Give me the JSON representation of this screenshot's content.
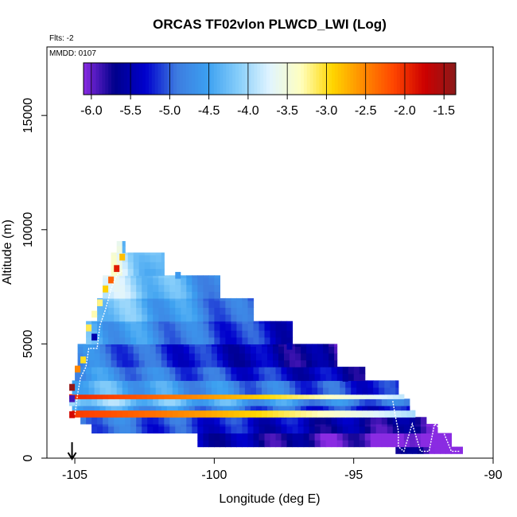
{
  "chart_data": {
    "type": "heatmap",
    "title": "ORCAS TF02vlon PLWCD_LWI (Log)",
    "flights_label": "Flts: -2",
    "date_label": "MMDD: 0107",
    "xlabel": "Longitude (deg E)",
    "ylabel": "Altitude (m)",
    "xlim": [
      -106,
      -90
    ],
    "ylim": [
      0,
      18000
    ],
    "xticks": [
      -105,
      -100,
      -95,
      -90
    ],
    "yticks": [
      0,
      5000,
      10000,
      15000
    ],
    "colorbar": {
      "range": [
        -6.1,
        -1.35
      ],
      "ticks": [
        -6.0,
        -5.5,
        -5.0,
        -4.5,
        -4.0,
        -3.5,
        -3.0,
        -2.5,
        -2.0,
        -1.5
      ],
      "tick_labels": [
        "-6.0",
        "-5.5",
        "-5.0",
        "-4.5",
        "-4.0",
        "-3.5",
        "-3.0",
        "-2.5",
        "-2.0",
        "-1.5"
      ],
      "colors": [
        "#8a2be2",
        "#00008b",
        "#0000cd",
        "#3d7be0",
        "#3ca0f0",
        "#87cefa",
        "#e0f4ff",
        "#ffffc0",
        "#ffd700",
        "#ff8c00",
        "#ff4500",
        "#cc0000",
        "#8b1a1a"
      ]
    },
    "marker_arrow_longitude": -105.1,
    "cell_size": {
      "dlon": 0.2,
      "dalt": 300
    },
    "bands": [
      {
        "alt": [
          200,
          500
        ],
        "lon": [
          -93.5,
          -91.1
        ],
        "value": -5.6
      },
      {
        "alt": [
          500,
          1100
        ],
        "lon": [
          -100.6,
          -91.5
        ],
        "value": -5.4
      },
      {
        "alt": [
          1100,
          1500
        ],
        "lon": [
          -104.4,
          -92.0
        ],
        "value": -4.9
      },
      {
        "alt": [
          1500,
          1800
        ],
        "lon": [
          -104.8,
          -92.4
        ],
        "value": -4.8
      },
      {
        "alt": [
          1800,
          2100
        ],
        "lon": [
          -105.1,
          -92.8
        ],
        "value": -2.1
      },
      {
        "alt": [
          2100,
          2300
        ],
        "lon": [
          -105.1,
          -93.0
        ],
        "value": -4.4
      },
      {
        "alt": [
          2300,
          2600
        ],
        "lon": [
          -105.2,
          -93.0
        ],
        "value": -4.0
      },
      {
        "alt": [
          2600,
          2800
        ],
        "lon": [
          -105.2,
          -93.2
        ],
        "value": -2.0
      },
      {
        "alt": [
          2800,
          3400
        ],
        "lon": [
          -105.1,
          -93.4
        ],
        "value": -4.3
      },
      {
        "alt": [
          3400,
          4000
        ],
        "lon": [
          -105.0,
          -94.6
        ],
        "value": -4.6
      },
      {
        "alt": [
          4000,
          5000
        ],
        "lon": [
          -104.9,
          -95.6
        ],
        "value": -4.8
      },
      {
        "alt": [
          5000,
          6000
        ],
        "lon": [
          -104.6,
          -97.2
        ],
        "value": -4.4
      },
      {
        "alt": [
          6000,
          7000
        ],
        "lon": [
          -104.2,
          -98.6
        ],
        "value": -4.1
      },
      {
        "alt": [
          7000,
          8000
        ],
        "lon": [
          -104.0,
          -99.8
        ],
        "value": -3.8
      },
      {
        "alt": [
          8000,
          9000
        ],
        "lon": [
          -103.7,
          -101.8
        ],
        "value": -3.6
      },
      {
        "alt": [
          9000,
          9500
        ],
        "lon": [
          -103.5,
          -103.2
        ],
        "value": -3.5
      }
    ],
    "highlights": [
      {
        "lon": -105.1,
        "alt": 1900,
        "value": -1.8
      },
      {
        "lon": -105.1,
        "alt": 2600,
        "value": -5.9
      },
      {
        "lon": -105.1,
        "alt": 3100,
        "value": -1.4
      },
      {
        "lon": -104.9,
        "alt": 3900,
        "value": -2.5
      },
      {
        "lon": -104.7,
        "alt": 4300,
        "value": -3.0
      },
      {
        "lon": -104.5,
        "alt": 5700,
        "value": -3.1
      },
      {
        "lon": -104.3,
        "alt": 6300,
        "value": -3.3
      },
      {
        "lon": -104.1,
        "alt": 6800,
        "value": -3.2
      },
      {
        "lon": -103.9,
        "alt": 7400,
        "value": -2.9
      },
      {
        "lon": -103.7,
        "alt": 7800,
        "value": -2.3
      },
      {
        "lon": -103.5,
        "alt": 8300,
        "value": -1.9
      },
      {
        "lon": -103.3,
        "alt": 8800,
        "value": -2.8
      },
      {
        "lon": -104.3,
        "alt": 5300,
        "value": -5.5
      },
      {
        "lon": -101.3,
        "alt": 8000,
        "value": -4.6
      },
      {
        "lon": -97.3,
        "alt": 4900,
        "value": -5.5
      },
      {
        "lon": -95.3,
        "alt": 3500,
        "value": -5.6
      }
    ],
    "flight_track": [
      [
        -105.0,
        1900
      ],
      [
        -104.9,
        2800
      ],
      [
        -104.8,
        3500
      ],
      [
        -104.6,
        4000
      ],
      [
        -104.5,
        4800
      ],
      [
        -104.2,
        4800
      ],
      [
        -104.1,
        5800
      ],
      [
        -103.9,
        6500
      ],
      [
        -103.7,
        7400
      ],
      [
        -103.5,
        8000
      ],
      [
        -103.3,
        8200
      ]
    ],
    "flight_track_east": [
      [
        -93.6,
        2500
      ],
      [
        -93.5,
        1800
      ],
      [
        -93.4,
        1200
      ],
      [
        -93.4,
        500
      ],
      [
        -93.2,
        300
      ],
      [
        -92.9,
        1500
      ],
      [
        -92.6,
        300
      ],
      [
        -92.3,
        300
      ],
      [
        -92.1,
        1500
      ],
      [
        -91.8,
        1200
      ],
      [
        -91.5,
        300
      ],
      [
        -91.2,
        300
      ]
    ]
  }
}
